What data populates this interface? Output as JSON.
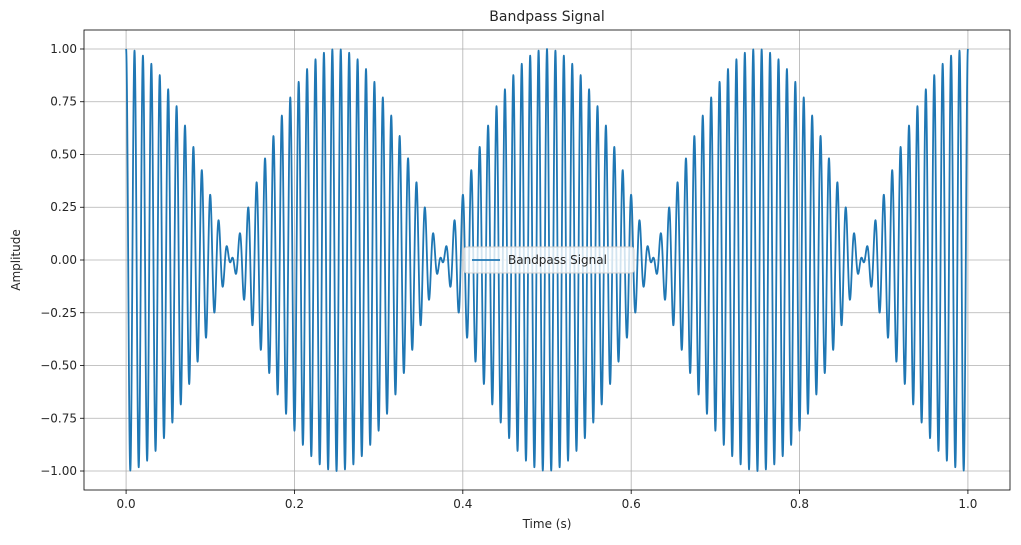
{
  "chart_data": {
    "type": "line",
    "title": "Bandpass Signal",
    "xlabel": "Time (s)",
    "ylabel": "Amplitude",
    "xlim": [
      -0.05,
      1.05
    ],
    "ylim": [
      -1.09,
      1.09
    ],
    "xticks": [
      0.0,
      0.2,
      0.4,
      0.6,
      0.8,
      1.0
    ],
    "xtick_labels": [
      "0.0",
      "0.2",
      "0.4",
      "0.6",
      "0.8",
      "1.0"
    ],
    "yticks": [
      -1.0,
      -0.75,
      -0.5,
      -0.25,
      0.0,
      0.25,
      0.5,
      0.75,
      1.0
    ],
    "ytick_labels": [
      "−1.00",
      "−0.75",
      "−0.50",
      "−0.25",
      "0.00",
      "0.25",
      "0.50",
      "0.75",
      "1.00"
    ],
    "grid": true,
    "legend_position": "center",
    "series": [
      {
        "name": "Bandpass Signal",
        "color": "#1f77b4",
        "function": "cos(2*pi*2*t) * cos(2*pi*100*t)",
        "x_range": [
          0.0,
          1.0
        ]
      }
    ]
  }
}
